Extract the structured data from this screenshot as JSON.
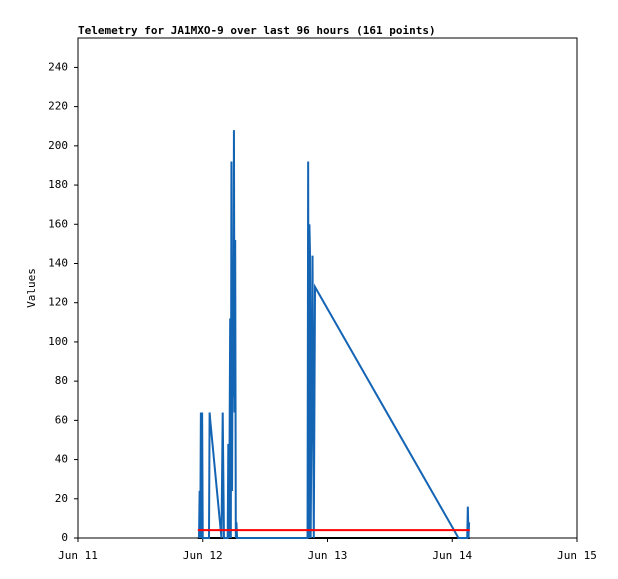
{
  "chart_data": {
    "type": "line",
    "title": "Telemetry for JA1MXO-9 over last 96 hours (161 points)",
    "y_label": "Values",
    "xlim": [
      0,
      4
    ],
    "xticks": [
      {
        "value": 0,
        "label": "Jun 11"
      },
      {
        "value": 1,
        "label": "Jun 12"
      },
      {
        "value": 2,
        "label": "Jun 13"
      },
      {
        "value": 3,
        "label": "Jun 14"
      },
      {
        "value": 4,
        "label": "Jun 15"
      }
    ],
    "ylim": [
      0,
      255
    ],
    "yticks": [
      0,
      20,
      40,
      60,
      80,
      100,
      120,
      140,
      160,
      180,
      200,
      220,
      240
    ],
    "series": [
      {
        "color": "#000000",
        "x": [
          0.96,
          3.14
        ],
        "values": [
          0,
          0
        ]
      },
      {
        "color": "#1464b4",
        "x": [
          0.97,
          0.975,
          0.98,
          0.985,
          0.99,
          0.995,
          1.0,
          1.05,
          1.055,
          1.06,
          1.15,
          1.16,
          1.17,
          1.2,
          1.205,
          1.21,
          1.215,
          1.22,
          1.225,
          1.23,
          1.235,
          1.24,
          1.245,
          1.25,
          1.255,
          1.26,
          1.265,
          1.27,
          1.275,
          1.84,
          1.845,
          1.85,
          1.855,
          1.86,
          1.865,
          1.88,
          1.885,
          1.89,
          1.9,
          3.05,
          3.12,
          3.125,
          3.13,
          3.135
        ],
        "values": [
          0,
          24,
          0,
          64,
          0,
          64,
          0,
          0,
          64,
          60,
          0,
          64,
          0,
          0,
          48,
          0,
          48,
          112,
          0,
          192,
          24,
          120,
          72,
          208,
          64,
          152,
          0,
          8,
          0,
          0,
          192,
          0,
          160,
          144,
          0,
          144,
          64,
          0,
          128,
          0,
          0,
          16,
          0,
          8
        ]
      },
      {
        "color": "#ff0000",
        "x": [
          0.96,
          3.14
        ],
        "values": [
          4,
          4
        ]
      }
    ]
  }
}
